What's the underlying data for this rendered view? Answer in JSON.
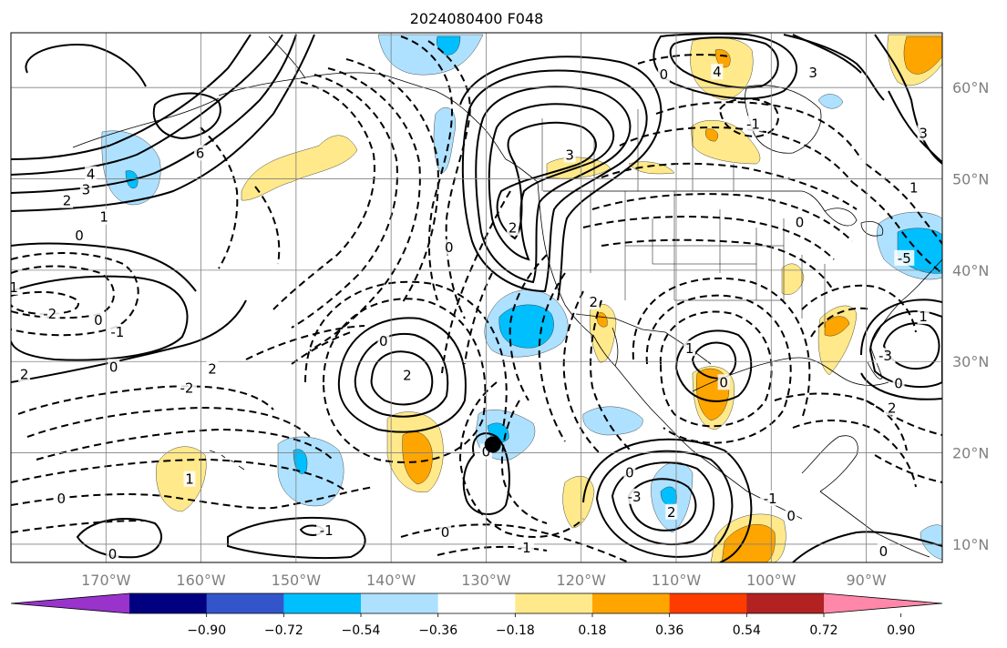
{
  "title": "2024080400 F048",
  "map": {
    "lon_range": [
      -180,
      -82
    ],
    "lat_range": [
      8,
      66
    ],
    "lon_ticks": [
      {
        "value": -170,
        "label": "170°W"
      },
      {
        "value": -160,
        "label": "160°W"
      },
      {
        "value": -150,
        "label": "150°W"
      },
      {
        "value": -140,
        "label": "140°W"
      },
      {
        "value": -130,
        "label": "130°W"
      },
      {
        "value": -120,
        "label": "120°W"
      },
      {
        "value": -110,
        "label": "110°W"
      },
      {
        "value": -100,
        "label": "100°W"
      },
      {
        "value": -90,
        "label": "90°W"
      }
    ],
    "lat_ticks": [
      {
        "value": 60,
        "label": "60°N"
      },
      {
        "value": 50,
        "label": "50°N"
      },
      {
        "value": 40,
        "label": "40°N"
      },
      {
        "value": 30,
        "label": "30°N"
      },
      {
        "value": 20,
        "label": "20°N"
      },
      {
        "value": 10,
        "label": "10°N"
      }
    ],
    "marker": {
      "lon": -129.3,
      "lat": 20.9,
      "color": "#000000"
    },
    "contour_labels": [
      {
        "text": "6",
        "lon": -160.1,
        "lat": 52.8
      },
      {
        "text": "4",
        "lon": -171.6,
        "lat": 50.5
      },
      {
        "text": "3",
        "lon": -172.1,
        "lat": 48.8
      },
      {
        "text": "2",
        "lon": -174.1,
        "lat": 47.6
      },
      {
        "text": "1",
        "lon": -170.2,
        "lat": 45.8
      },
      {
        "text": "0",
        "lon": -172.8,
        "lat": 43.8
      },
      {
        "text": "1",
        "lon": -179.7,
        "lat": 38.1
      },
      {
        "text": "-2",
        "lon": -175.9,
        "lat": 35.2
      },
      {
        "text": "-1",
        "lon": -168.8,
        "lat": 33.2
      },
      {
        "text": "0",
        "lon": -170.8,
        "lat": 34.5
      },
      {
        "text": "2",
        "lon": -178.6,
        "lat": 28.6
      },
      {
        "text": "0",
        "lon": -169.2,
        "lat": 29.4
      },
      {
        "text": "-2",
        "lon": -161.5,
        "lat": 27.1
      },
      {
        "text": "2",
        "lon": -158.8,
        "lat": 29.2
      },
      {
        "text": "1",
        "lon": -161.2,
        "lat": 17.1
      },
      {
        "text": "0",
        "lon": -174.7,
        "lat": 15.0
      },
      {
        "text": "0",
        "lon": -169.3,
        "lat": 8.9
      },
      {
        "text": "-1",
        "lon": -146.8,
        "lat": 11.5
      },
      {
        "text": "0",
        "lon": -140.8,
        "lat": 32.2
      },
      {
        "text": "2",
        "lon": -138.3,
        "lat": 28.5
      },
      {
        "text": "0",
        "lon": -133.9,
        "lat": 42.5
      },
      {
        "text": "3",
        "lon": -121.2,
        "lat": 52.6
      },
      {
        "text": "2",
        "lon": -127.2,
        "lat": 44.6
      },
      {
        "text": "0",
        "lon": -130.0,
        "lat": 20.1
      },
      {
        "text": "0",
        "lon": -134.3,
        "lat": 11.3
      },
      {
        "text": "-1",
        "lon": -126.0,
        "lat": 9.6
      },
      {
        "text": "0",
        "lon": -114.9,
        "lat": 17.8
      },
      {
        "text": "-3",
        "lon": -114.4,
        "lat": 15.2
      },
      {
        "text": "2",
        "lon": -110.5,
        "lat": 13.5
      },
      {
        "text": "-1",
        "lon": -100.1,
        "lat": 15.0
      },
      {
        "text": "0",
        "lon": -97.9,
        "lat": 13.1
      },
      {
        "text": "1",
        "lon": -108.6,
        "lat": 31.4
      },
      {
        "text": "0",
        "lon": -105.0,
        "lat": 27.7
      },
      {
        "text": "0",
        "lon": -111.3,
        "lat": 61.4
      },
      {
        "text": "4",
        "lon": -105.7,
        "lat": 61.7
      },
      {
        "text": "-1",
        "lon": -101.9,
        "lat": 56.0
      },
      {
        "text": "3",
        "lon": -95.6,
        "lat": 61.6
      },
      {
        "text": "0",
        "lon": -97.0,
        "lat": 45.2
      },
      {
        "text": "1",
        "lon": -85.0,
        "lat": 49.0
      },
      {
        "text": "3",
        "lon": -84.0,
        "lat": 55.0
      },
      {
        "text": "-3",
        "lon": -88.0,
        "lat": 30.6
      },
      {
        "text": "1",
        "lon": -84.0,
        "lat": 34.9
      },
      {
        "text": "0",
        "lon": -86.6,
        "lat": 27.6
      },
      {
        "text": "2",
        "lon": -87.3,
        "lat": 24.9
      },
      {
        "text": "0",
        "lon": -88.2,
        "lat": 9.2
      },
      {
        "text": "-5",
        "lon": -86.0,
        "lat": 41.3
      },
      {
        "text": "2",
        "lon": -118.7,
        "lat": 36.5
      }
    ]
  },
  "colorbar": {
    "colors": [
      "#9933cc",
      "#000080",
      "#3355cc",
      "#00bfff",
      "#aee1ff",
      "#ffffff",
      "#ffe98a",
      "#ffa500",
      "#ff3c00",
      "#b22222",
      "#ff88aa"
    ],
    "tick_values": [
      -0.9,
      -0.72,
      -0.54,
      -0.36,
      -0.18,
      0.18,
      0.36,
      0.54,
      0.72,
      0.9
    ],
    "tick_labels": [
      "−0.90",
      "−0.72",
      "−0.54",
      "−0.36",
      "−0.18",
      "0.18",
      "0.36",
      "0.54",
      "0.72",
      "0.90"
    ]
  }
}
